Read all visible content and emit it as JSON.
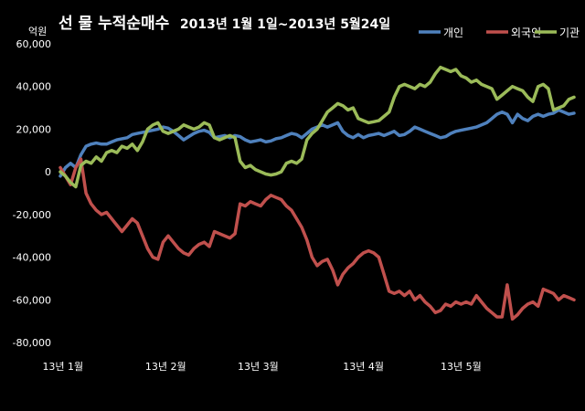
{
  "chart_data": {
    "type": "line",
    "title_main": "선 물 누적순매수",
    "title_range": "2013년 1월 1일~2013년 5월24일",
    "ylabel": "억원",
    "ylim": [
      -80000,
      60000
    ],
    "yticks": [
      60000,
      40000,
      20000,
      0,
      -20000,
      -40000,
      -60000,
      -80000
    ],
    "ytick_labels": [
      "60,000",
      "40,000",
      "20,000",
      "0",
      "-20,000",
      "-40,000",
      "-60,000",
      "-80,000"
    ],
    "x_range": [
      0,
      100
    ],
    "xtick_labels": [
      {
        "label": "13년 1월",
        "x": 0.5
      },
      {
        "label": "13년 2월",
        "x": 20.5
      },
      {
        "label": "13년 3월",
        "x": 38.5
      },
      {
        "label": "13년 4월",
        "x": 59
      },
      {
        "label": "13년 5월",
        "x": 78
      }
    ],
    "grid": false,
    "legend_position": "top-right",
    "series": [
      {
        "name": "개인",
        "color": "#4F81BD",
        "points": [
          [
            0,
            -2000
          ],
          [
            1,
            2000
          ],
          [
            2,
            4000
          ],
          [
            3,
            2000
          ],
          [
            4,
            8000
          ],
          [
            5,
            12000
          ],
          [
            6,
            13000
          ],
          [
            7,
            13500
          ],
          [
            8,
            13000
          ],
          [
            9,
            13000
          ],
          [
            10,
            14000
          ],
          [
            11,
            15000
          ],
          [
            12,
            15500
          ],
          [
            13,
            16000
          ],
          [
            14,
            17500
          ],
          [
            15,
            18000
          ],
          [
            16,
            18500
          ],
          [
            17,
            19000
          ],
          [
            18,
            19500
          ],
          [
            19,
            20000
          ],
          [
            20,
            21000
          ],
          [
            21,
            20500
          ],
          [
            22,
            19000
          ],
          [
            23,
            17000
          ],
          [
            24,
            15000
          ],
          [
            25,
            16500
          ],
          [
            26,
            18000
          ],
          [
            27,
            19000
          ],
          [
            28,
            19500
          ],
          [
            29,
            18500
          ],
          [
            30,
            16000
          ],
          [
            31,
            16500
          ],
          [
            32,
            17000
          ],
          [
            33,
            16000
          ],
          [
            34,
            17000
          ],
          [
            35,
            16500
          ],
          [
            36,
            15000
          ],
          [
            37,
            14000
          ],
          [
            38,
            14500
          ],
          [
            39,
            15000
          ],
          [
            40,
            14000
          ],
          [
            41,
            14500
          ],
          [
            42,
            15500
          ],
          [
            43,
            16000
          ],
          [
            44,
            17000
          ],
          [
            45,
            18000
          ],
          [
            46,
            17500
          ],
          [
            47,
            16000
          ],
          [
            48,
            18000
          ],
          [
            49,
            20000
          ],
          [
            50,
            21000
          ],
          [
            51,
            22000
          ],
          [
            52,
            21000
          ],
          [
            53,
            22000
          ],
          [
            54,
            23000
          ],
          [
            55,
            19000
          ],
          [
            56,
            17000
          ],
          [
            57,
            16000
          ],
          [
            58,
            17500
          ],
          [
            59,
            16000
          ],
          [
            60,
            17000
          ],
          [
            61,
            17500
          ],
          [
            62,
            18000
          ],
          [
            63,
            17000
          ],
          [
            64,
            18000
          ],
          [
            65,
            19000
          ],
          [
            66,
            17000
          ],
          [
            67,
            17500
          ],
          [
            68,
            19000
          ],
          [
            69,
            21000
          ],
          [
            70,
            20000
          ],
          [
            71,
            19000
          ],
          [
            72,
            18000
          ],
          [
            73,
            17000
          ],
          [
            74,
            16000
          ],
          [
            75,
            16500
          ],
          [
            76,
            18000
          ],
          [
            77,
            19000
          ],
          [
            78,
            19500
          ],
          [
            79,
            20000
          ],
          [
            80,
            20500
          ],
          [
            81,
            21000
          ],
          [
            82,
            22000
          ],
          [
            83,
            23000
          ],
          [
            84,
            25000
          ],
          [
            85,
            27000
          ],
          [
            86,
            28000
          ],
          [
            87,
            27000
          ],
          [
            88,
            23000
          ],
          [
            89,
            27000
          ],
          [
            90,
            25000
          ],
          [
            91,
            24000
          ],
          [
            92,
            26000
          ],
          [
            93,
            27000
          ],
          [
            94,
            26000
          ],
          [
            95,
            27000
          ],
          [
            96,
            27500
          ],
          [
            97,
            29000
          ],
          [
            98,
            28000
          ],
          [
            99,
            27000
          ],
          [
            100,
            27500
          ]
        ]
      },
      {
        "name": "외국인",
        "color": "#C0504D",
        "points": [
          [
            0,
            2000
          ],
          [
            1,
            -2000
          ],
          [
            2,
            -6000
          ],
          [
            3,
            2000
          ],
          [
            4,
            6000
          ],
          [
            5,
            -10000
          ],
          [
            6,
            -15000
          ],
          [
            7,
            -18000
          ],
          [
            8,
            -20000
          ],
          [
            9,
            -19000
          ],
          [
            10,
            -22000
          ],
          [
            11,
            -25000
          ],
          [
            12,
            -28000
          ],
          [
            13,
            -25000
          ],
          [
            14,
            -22000
          ],
          [
            15,
            -24000
          ],
          [
            16,
            -30000
          ],
          [
            17,
            -36000
          ],
          [
            18,
            -40000
          ],
          [
            19,
            -41000
          ],
          [
            20,
            -33000
          ],
          [
            21,
            -30000
          ],
          [
            22,
            -33000
          ],
          [
            23,
            -36000
          ],
          [
            24,
            -38000
          ],
          [
            25,
            -39000
          ],
          [
            26,
            -36000
          ],
          [
            27,
            -34000
          ],
          [
            28,
            -33000
          ],
          [
            29,
            -35000
          ],
          [
            30,
            -28000
          ],
          [
            31,
            -29000
          ],
          [
            32,
            -30000
          ],
          [
            33,
            -31000
          ],
          [
            34,
            -29000
          ],
          [
            35,
            -15000
          ],
          [
            36,
            -16000
          ],
          [
            37,
            -14000
          ],
          [
            38,
            -15000
          ],
          [
            39,
            -16000
          ],
          [
            40,
            -13000
          ],
          [
            41,
            -11000
          ],
          [
            42,
            -12000
          ],
          [
            43,
            -13000
          ],
          [
            44,
            -16000
          ],
          [
            45,
            -18000
          ],
          [
            46,
            -22000
          ],
          [
            47,
            -26000
          ],
          [
            48,
            -32000
          ],
          [
            49,
            -40000
          ],
          [
            50,
            -44000
          ],
          [
            51,
            -42000
          ],
          [
            52,
            -41000
          ],
          [
            53,
            -46000
          ],
          [
            54,
            -53000
          ],
          [
            55,
            -48000
          ],
          [
            56,
            -45000
          ],
          [
            57,
            -43000
          ],
          [
            58,
            -40000
          ],
          [
            59,
            -38000
          ],
          [
            60,
            -37000
          ],
          [
            61,
            -38000
          ],
          [
            62,
            -40000
          ],
          [
            63,
            -48000
          ],
          [
            64,
            -56000
          ],
          [
            65,
            -57000
          ],
          [
            66,
            -56000
          ],
          [
            67,
            -58000
          ],
          [
            68,
            -56000
          ],
          [
            69,
            -60000
          ],
          [
            70,
            -58000
          ],
          [
            71,
            -61000
          ],
          [
            72,
            -63000
          ],
          [
            73,
            -66000
          ],
          [
            74,
            -65000
          ],
          [
            75,
            -62000
          ],
          [
            76,
            -63000
          ],
          [
            77,
            -61000
          ],
          [
            78,
            -62000
          ],
          [
            79,
            -61000
          ],
          [
            80,
            -62000
          ],
          [
            81,
            -58000
          ],
          [
            82,
            -61000
          ],
          [
            83,
            -64000
          ],
          [
            84,
            -66000
          ],
          [
            85,
            -68000
          ],
          [
            86,
            -68000
          ],
          [
            87,
            -53000
          ],
          [
            88,
            -69000
          ],
          [
            89,
            -67000
          ],
          [
            90,
            -64000
          ],
          [
            91,
            -62000
          ],
          [
            92,
            -61000
          ],
          [
            93,
            -63000
          ],
          [
            94,
            -55000
          ],
          [
            95,
            -56000
          ],
          [
            96,
            -57000
          ],
          [
            97,
            -60000
          ],
          [
            98,
            -58000
          ],
          [
            99,
            -59000
          ],
          [
            100,
            -60000
          ]
        ]
      },
      {
        "name": "기관",
        "color": "#9BBB59",
        "points": [
          [
            0,
            0
          ],
          [
            1,
            -2000
          ],
          [
            2,
            -5000
          ],
          [
            3,
            -7000
          ],
          [
            4,
            3000
          ],
          [
            5,
            5000
          ],
          [
            6,
            4000
          ],
          [
            7,
            7000
          ],
          [
            8,
            5000
          ],
          [
            9,
            9000
          ],
          [
            10,
            10000
          ],
          [
            11,
            9000
          ],
          [
            12,
            12000
          ],
          [
            13,
            11000
          ],
          [
            14,
            13000
          ],
          [
            15,
            10000
          ],
          [
            16,
            14000
          ],
          [
            17,
            20000
          ],
          [
            18,
            22000
          ],
          [
            19,
            23000
          ],
          [
            20,
            19000
          ],
          [
            21,
            18000
          ],
          [
            22,
            19000
          ],
          [
            23,
            20000
          ],
          [
            24,
            22000
          ],
          [
            25,
            21000
          ],
          [
            26,
            20000
          ],
          [
            27,
            21000
          ],
          [
            28,
            23000
          ],
          [
            29,
            22000
          ],
          [
            30,
            16000
          ],
          [
            31,
            15000
          ],
          [
            32,
            16000
          ],
          [
            33,
            17000
          ],
          [
            34,
            16000
          ],
          [
            35,
            5000
          ],
          [
            36,
            2000
          ],
          [
            37,
            3000
          ],
          [
            38,
            1000
          ],
          [
            39,
            0
          ],
          [
            40,
            -1000
          ],
          [
            41,
            -1500
          ],
          [
            42,
            -1000
          ],
          [
            43,
            0
          ],
          [
            44,
            4000
          ],
          [
            45,
            5000
          ],
          [
            46,
            4000
          ],
          [
            47,
            6000
          ],
          [
            48,
            15000
          ],
          [
            49,
            18000
          ],
          [
            50,
            20000
          ],
          [
            51,
            24000
          ],
          [
            52,
            28000
          ],
          [
            53,
            30000
          ],
          [
            54,
            32000
          ],
          [
            55,
            31000
          ],
          [
            56,
            29000
          ],
          [
            57,
            30000
          ],
          [
            58,
            25000
          ],
          [
            59,
            24000
          ],
          [
            60,
            23000
          ],
          [
            61,
            23500
          ],
          [
            62,
            24000
          ],
          [
            63,
            26000
          ],
          [
            64,
            28000
          ],
          [
            65,
            35000
          ],
          [
            66,
            40000
          ],
          [
            67,
            41000
          ],
          [
            68,
            40000
          ],
          [
            69,
            39000
          ],
          [
            70,
            41000
          ],
          [
            71,
            40000
          ],
          [
            72,
            42000
          ],
          [
            73,
            46000
          ],
          [
            74,
            49000
          ],
          [
            75,
            48000
          ],
          [
            76,
            47000
          ],
          [
            77,
            48000
          ],
          [
            78,
            45000
          ],
          [
            79,
            44000
          ],
          [
            80,
            42000
          ],
          [
            81,
            43000
          ],
          [
            82,
            41000
          ],
          [
            83,
            40000
          ],
          [
            84,
            39000
          ],
          [
            85,
            34000
          ],
          [
            86,
            36000
          ],
          [
            87,
            38000
          ],
          [
            88,
            40000
          ],
          [
            89,
            39000
          ],
          [
            90,
            38000
          ],
          [
            91,
            35000
          ],
          [
            92,
            33000
          ],
          [
            93,
            40000
          ],
          [
            94,
            41000
          ],
          [
            95,
            39000
          ],
          [
            96,
            29000
          ],
          [
            97,
            30000
          ],
          [
            98,
            31000
          ],
          [
            99,
            34000
          ],
          [
            100,
            35000
          ]
        ]
      }
    ]
  }
}
